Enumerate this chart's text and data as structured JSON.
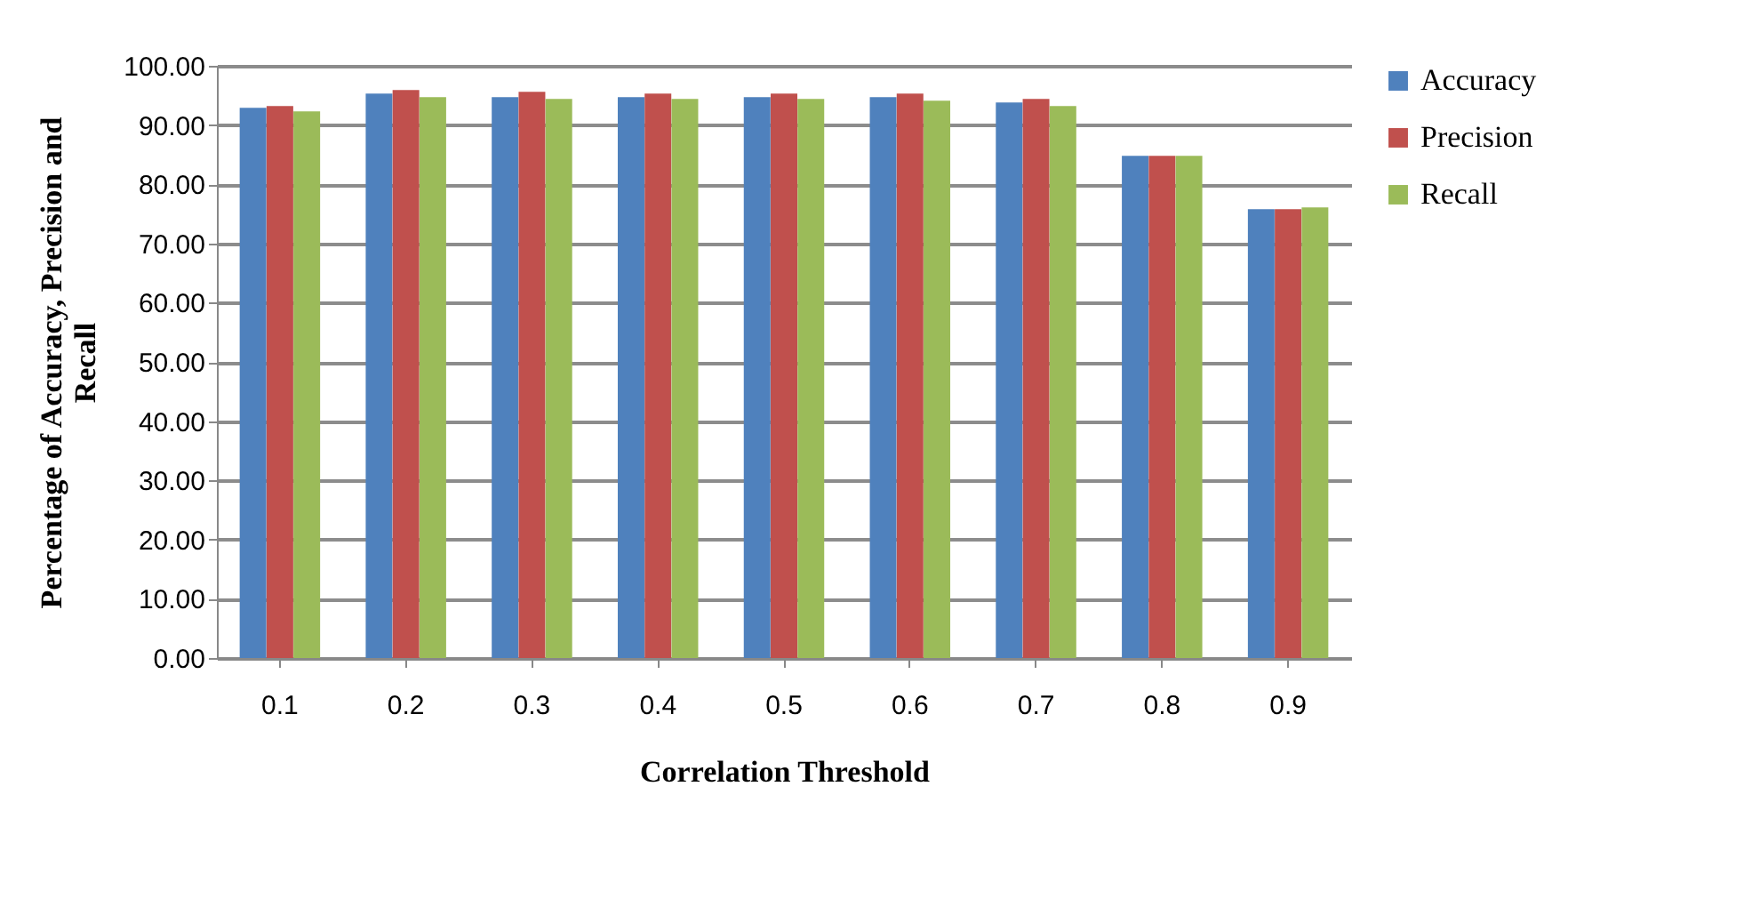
{
  "chart_data": {
    "type": "bar",
    "xlabel": "Correlation  Threshold",
    "ylabel": "Percentage of Accuracy, Precision and Recall",
    "categories": [
      "0.1",
      "0.2",
      "0.3",
      "0.4",
      "0.5",
      "0.6",
      "0.7",
      "0.8",
      "0.9"
    ],
    "series": [
      {
        "name": "Accuracy",
        "color": "#4f81bd",
        "values": [
          92.9,
          95.3,
          94.7,
          94.7,
          94.7,
          94.7,
          93.8,
          84.8,
          75.8
        ]
      },
      {
        "name": "Precision",
        "color": "#c0504d",
        "values": [
          93.2,
          95.9,
          95.6,
          95.3,
          95.3,
          95.3,
          94.4,
          84.8,
          75.8
        ]
      },
      {
        "name": "Recall",
        "color": "#9bbb59",
        "values": [
          92.3,
          94.7,
          94.4,
          94.4,
          94.4,
          94.1,
          93.2,
          84.8,
          76.1
        ]
      }
    ],
    "ylim": [
      0,
      100
    ],
    "yticks": [
      {
        "value": 0,
        "label": "0.00"
      },
      {
        "value": 10,
        "label": "10.00"
      },
      {
        "value": 20,
        "label": "20.00"
      },
      {
        "value": 30,
        "label": "30.00"
      },
      {
        "value": 40,
        "label": "40.00"
      },
      {
        "value": 50,
        "label": "50.00"
      },
      {
        "value": 60,
        "label": "60.00"
      },
      {
        "value": 70,
        "label": "70.00"
      },
      {
        "value": 80,
        "label": "80.00"
      },
      {
        "value": 90,
        "label": "90.00"
      },
      {
        "value": 100,
        "label": "100.00"
      }
    ],
    "grid": "y",
    "legend": "right"
  }
}
